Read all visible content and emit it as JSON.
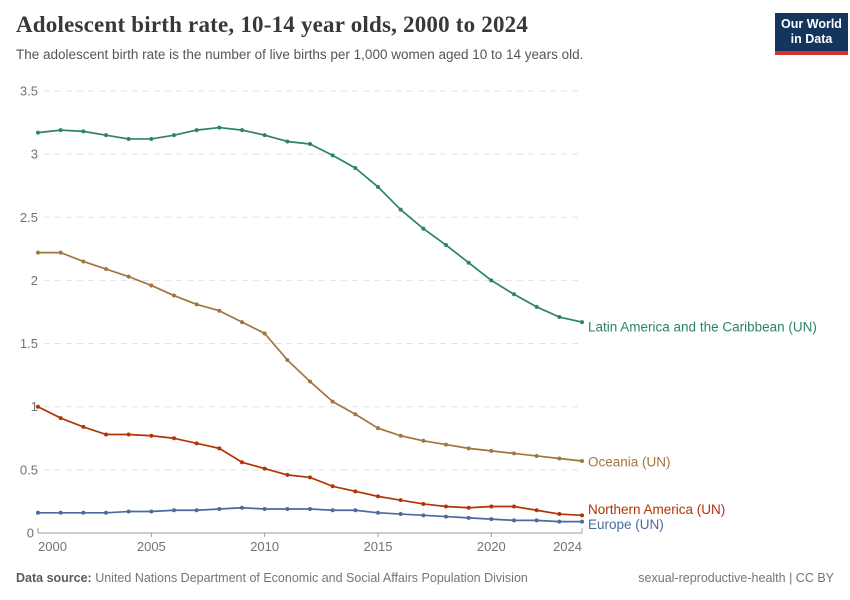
{
  "header": {
    "title": "Adolescent birth rate, 10-14 year olds, 2000 to 2024",
    "subtitle": "The adolescent birth rate is the number of live births per 1,000 women aged 10 to 14 years old.",
    "logo": {
      "line1": "Our World",
      "line2": "in Data",
      "bg_color": "#14355c",
      "accent_color": "#d1342e"
    }
  },
  "chart_data": {
    "type": "line",
    "title": "Adolescent birth rate, 10-14 year olds, 2000 to 2024",
    "subtitle": "The adolescent birth rate is the number of live births per 1,000 women aged 10 to 14 years old.",
    "xlabel": "",
    "ylabel": "",
    "x": [
      2000,
      2001,
      2002,
      2003,
      2004,
      2005,
      2006,
      2007,
      2008,
      2009,
      2010,
      2011,
      2012,
      2013,
      2014,
      2015,
      2016,
      2017,
      2018,
      2019,
      2020,
      2021,
      2022,
      2023,
      2024
    ],
    "series": [
      {
        "name": "Latin America and the Caribbean (UN)",
        "color": "#2c8465",
        "values": [
          3.17,
          3.19,
          3.18,
          3.15,
          3.12,
          3.12,
          3.15,
          3.19,
          3.21,
          3.19,
          3.15,
          3.1,
          3.08,
          2.99,
          2.89,
          2.74,
          2.56,
          2.41,
          2.28,
          2.14,
          2.0,
          1.89,
          1.79,
          1.71,
          1.67
        ]
      },
      {
        "name": "Oceania (UN)",
        "color": "#a2753f",
        "values": [
          2.22,
          2.22,
          2.15,
          2.09,
          2.03,
          1.96,
          1.88,
          1.81,
          1.76,
          1.67,
          1.58,
          1.37,
          1.2,
          1.04,
          0.94,
          0.83,
          0.77,
          0.73,
          0.7,
          0.67,
          0.65,
          0.63,
          0.61,
          0.59,
          0.57
        ]
      },
      {
        "name": "Northern America (UN)",
        "color": "#b13507",
        "values": [
          1.0,
          0.91,
          0.84,
          0.78,
          0.78,
          0.77,
          0.75,
          0.71,
          0.67,
          0.56,
          0.51,
          0.46,
          0.44,
          0.37,
          0.33,
          0.29,
          0.26,
          0.23,
          0.21,
          0.2,
          0.21,
          0.21,
          0.18,
          0.15,
          0.14
        ]
      },
      {
        "name": "Europe (UN)",
        "color": "#4c6a9c",
        "values": [
          0.16,
          0.16,
          0.16,
          0.16,
          0.17,
          0.17,
          0.18,
          0.18,
          0.19,
          0.2,
          0.19,
          0.19,
          0.19,
          0.18,
          0.18,
          0.16,
          0.15,
          0.14,
          0.13,
          0.12,
          0.11,
          0.1,
          0.1,
          0.09,
          0.09
        ]
      }
    ],
    "ylim": [
      0,
      3.5
    ],
    "yticks": [
      0,
      0.5,
      1,
      1.5,
      2,
      2.5,
      3,
      3.5
    ],
    "xticks": [
      2000,
      2005,
      2010,
      2015,
      2020,
      2024
    ],
    "grid": "horizontal-dashed",
    "legend_position": "right-of-line-ends",
    "label_offsets": {
      "Latin America and the Caribbean (UN)": 5,
      "Oceania (UN)": 1,
      "Northern America (UN)": -6,
      "Europe (UN)": 3
    }
  },
  "style_colors": {
    "gridline": "#e3e3e3",
    "axis": "#9e9e9e",
    "tick_label": "#737373"
  },
  "footer": {
    "source_label": "Data source:",
    "source_text": " United Nations Department of Economic and Social Affairs Population Division",
    "rights": "sexual-reproductive-health | CC BY"
  }
}
